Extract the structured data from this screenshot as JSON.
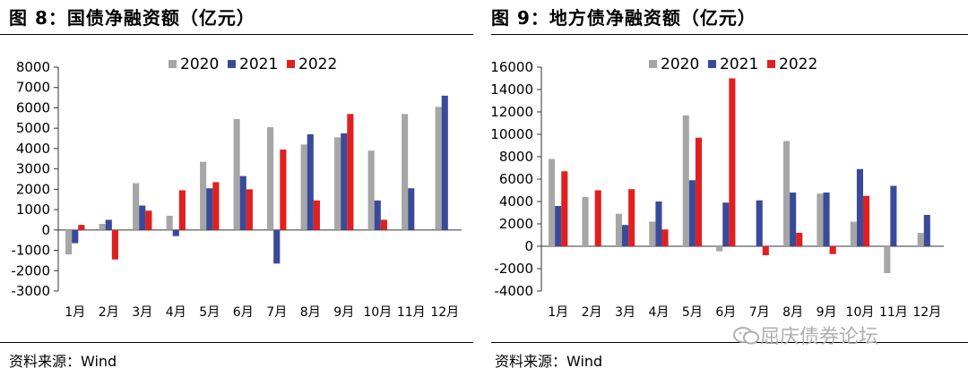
{
  "panels": [
    {
      "title": "图 8：国债净融资额（亿元）",
      "source": "资料来源：Wind",
      "chart_data": {
        "type": "bar",
        "title": "国债净融资额（亿元）",
        "categories": [
          "1月",
          "2月",
          "3月",
          "4月",
          "5月",
          "6月",
          "7月",
          "8月",
          "9月",
          "10月",
          "11月",
          "12月"
        ],
        "series": [
          {
            "name": "2020",
            "color": "#a6a6a6",
            "values": [
              -1200,
              300,
              2300,
              700,
              3350,
              5450,
              5050,
              4200,
              4550,
              3900,
              5700,
              6050
            ]
          },
          {
            "name": "2021",
            "color": "#3a4a9a",
            "values": [
              -650,
              500,
              1200,
              -300,
              2050,
              2650,
              -1650,
              4700,
              4750,
              1450,
              2050,
              6600
            ]
          },
          {
            "name": "2022",
            "color": "#e02020",
            "values": [
              250,
              -1450,
              950,
              1950,
              2350,
              2000,
              3950,
              1450,
              5700,
              500,
              null,
              null
            ]
          }
        ],
        "ylim": [
          -3000,
          8000
        ],
        "yticks": [
          -3000,
          -2000,
          -1000,
          0,
          1000,
          2000,
          3000,
          4000,
          5000,
          6000,
          7000,
          8000
        ],
        "legend": "top-center"
      }
    },
    {
      "title": "图 9：地方债净融资额（亿元）",
      "source": "资料来源：Wind",
      "chart_data": {
        "type": "bar",
        "title": "地方债净融资额（亿元）",
        "categories": [
          "1月",
          "2月",
          "3月",
          "4月",
          "5月",
          "6月",
          "7月",
          "8月",
          "9月",
          "10月",
          "11月",
          "12月"
        ],
        "series": [
          {
            "name": "2020",
            "color": "#a6a6a6",
            "values": [
              7800,
              4400,
              2900,
              2200,
              11700,
              -450,
              null,
              9400,
              4700,
              2200,
              -2400,
              1200
            ]
          },
          {
            "name": "2021",
            "color": "#3a4a9a",
            "values": [
              3600,
              null,
              1900,
              4000,
              5900,
              3900,
              4100,
              4800,
              4800,
              6900,
              5400,
              2800
            ]
          },
          {
            "name": "2022",
            "color": "#e02020",
            "values": [
              6700,
              5000,
              5100,
              1500,
              9700,
              15000,
              -800,
              1200,
              -700,
              4500,
              null,
              null
            ]
          }
        ],
        "ylim": [
          -4000,
          16000
        ],
        "yticks": [
          -4000,
          -2000,
          0,
          2000,
          4000,
          6000,
          8000,
          10000,
          12000,
          14000,
          16000
        ],
        "legend": "top-center"
      }
    }
  ],
  "watermark": "屈庆债券论坛"
}
